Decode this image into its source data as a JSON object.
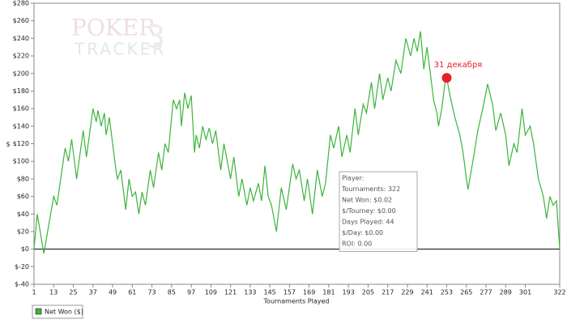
{
  "chart_data": {
    "type": "line",
    "watermark": [
      "POKER",
      "TRACKER",
      "3"
    ],
    "xlabel": "Tournaments Played",
    "ylabel": "$",
    "x": [
      1,
      3,
      7,
      13,
      15,
      20,
      22,
      24,
      27,
      31,
      33,
      37,
      39,
      40,
      42,
      44,
      45,
      47,
      51,
      52,
      54,
      57,
      59,
      61,
      63,
      65,
      67,
      69,
      72,
      74,
      77,
      79,
      81,
      83,
      86,
      88,
      90,
      91,
      93,
      95,
      97,
      99,
      100,
      102,
      104,
      106,
      108,
      110,
      112,
      115,
      117,
      119,
      121,
      123,
      126,
      128,
      131,
      133,
      135,
      138,
      140,
      142,
      144,
      146,
      149,
      152,
      155,
      159,
      161,
      163,
      166,
      168,
      171,
      174,
      177,
      179,
      182,
      184,
      187,
      189,
      192,
      194,
      197,
      199,
      202,
      204,
      207,
      209,
      212,
      214,
      217,
      219,
      222,
      225,
      228,
      231,
      233,
      235,
      237,
      239,
      241,
      243,
      245,
      247,
      248,
      250,
      252,
      253,
      255,
      258,
      261,
      263,
      265,
      266,
      269,
      272,
      275,
      278,
      281,
      283,
      286,
      289,
      291,
      294,
      296,
      299,
      301,
      304,
      306,
      309,
      312,
      314,
      316,
      318,
      320,
      322
    ],
    "series": [
      {
        "name": "Net Won ($)",
        "color": "#3cb43c",
        "values": [
          0,
          40,
          -5,
          60,
          50,
          115,
          100,
          125,
          80,
          135,
          105,
          160,
          145,
          158,
          140,
          155,
          130,
          150,
          90,
          80,
          90,
          45,
          80,
          60,
          65,
          40,
          65,
          50,
          90,
          70,
          110,
          90,
          120,
          110,
          170,
          160,
          170,
          140,
          178,
          160,
          175,
          110,
          130,
          115,
          140,
          125,
          138,
          120,
          135,
          90,
          120,
          100,
          80,
          105,
          60,
          80,
          50,
          70,
          55,
          75,
          55,
          95,
          60,
          50,
          20,
          70,
          45,
          97,
          80,
          90,
          55,
          80,
          40,
          90,
          60,
          75,
          130,
          115,
          140,
          105,
          130,
          110,
          160,
          130,
          165,
          155,
          190,
          160,
          200,
          170,
          195,
          180,
          215,
          200,
          240,
          220,
          240,
          225,
          248,
          205,
          230,
          200,
          170,
          155,
          140,
          160,
          190,
          195,
          175,
          150,
          130,
          110,
          80,
          68,
          100,
          135,
          160,
          188,
          165,
          135,
          155,
          130,
          95,
          120,
          110,
          160,
          130,
          140,
          120,
          80,
          60,
          35,
          60,
          50,
          55,
          0
        ]
      }
    ],
    "xlim": [
      1,
      322
    ],
    "xticks": [
      1,
      13,
      25,
      37,
      49,
      61,
      73,
      85,
      97,
      109,
      121,
      133,
      145,
      157,
      169,
      181,
      193,
      205,
      217,
      229,
      241,
      253,
      265,
      277,
      289,
      301,
      322
    ],
    "ylim": [
      -40,
      280
    ],
    "yticks": [
      {
        "value": -40,
        "label": "$-40"
      },
      {
        "value": -20,
        "label": "$-20"
      },
      {
        "value": 0,
        "label": "$0"
      },
      {
        "value": 20,
        "label": "$20"
      },
      {
        "value": 40,
        "label": "$40"
      },
      {
        "value": 60,
        "label": "$60"
      },
      {
        "value": 80,
        "label": "$80"
      },
      {
        "value": 100,
        "label": "$100"
      },
      {
        "value": 120,
        "label": "$120"
      },
      {
        "value": 140,
        "label": "$140"
      },
      {
        "value": 160,
        "label": "$160"
      },
      {
        "value": 180,
        "label": "$180"
      },
      {
        "value": 200,
        "label": "$200"
      },
      {
        "value": 220,
        "label": "$220"
      },
      {
        "value": 240,
        "label": "$240"
      },
      {
        "value": 260,
        "label": "$260"
      },
      {
        "value": 280,
        "label": "$280"
      }
    ],
    "annotations": [
      {
        "text": "31 декабря",
        "x": 253,
        "y": 195,
        "color": "#e8202a"
      }
    ],
    "tooltip": [
      "Player:",
      "Tournaments: 322",
      "Net Won: $0.02",
      "$/Tourney: $0.00",
      "Days Played: 44",
      "$/Day: $0.00",
      "ROI: 0.00"
    ],
    "legend": "bottom-left"
  }
}
